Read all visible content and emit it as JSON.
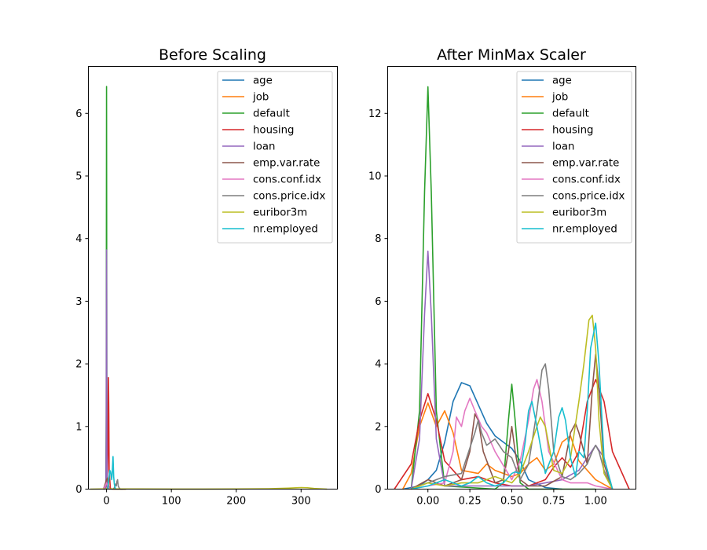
{
  "colors": [
    "#1f77b4",
    "#ff7f0e",
    "#2ca02c",
    "#d62728",
    "#9467bd",
    "#8c564b",
    "#e377c2",
    "#7f7f7f",
    "#bcbd22",
    "#17becf"
  ],
  "chart_data": [
    {
      "type": "line",
      "title": "Before Scaling",
      "xlabel": "",
      "ylabel": "",
      "xlim": [
        -28,
        356
      ],
      "ylim": [
        0,
        6.75
      ],
      "xticks": [
        0,
        100,
        200,
        300
      ],
      "xtick_labels": [
        "0",
        "100",
        "200",
        "300"
      ],
      "yticks": [
        0,
        1,
        2,
        3,
        4,
        5,
        6
      ],
      "ytick_labels": [
        "0",
        "1",
        "2",
        "3",
        "4",
        "5",
        "6"
      ],
      "legend_position": "top-right",
      "series": [
        {
          "name": "age",
          "x": [
            -5,
            -2,
            0,
            1,
            2,
            4,
            10,
            20,
            30
          ],
          "y": [
            0,
            0.002,
            0.008,
            0.01,
            0.008,
            0.002,
            0,
            0,
            0
          ]
        },
        {
          "name": "job",
          "x": [
            -5,
            -2,
            0,
            1,
            2,
            4,
            10,
            20,
            30
          ],
          "y": [
            0,
            0.01,
            0.04,
            0.06,
            0.04,
            0.01,
            0,
            0,
            0
          ]
        },
        {
          "name": "default",
          "x": [
            -2,
            -1,
            -0.5,
            -0.2,
            0,
            0.2,
            0.5,
            1,
            2
          ],
          "y": [
            0,
            0.05,
            1.2,
            4.5,
            6.43,
            4.5,
            1.2,
            0.05,
            0
          ]
        },
        {
          "name": "housing",
          "x": [
            -3,
            -1,
            0,
            1,
            2,
            2.5,
            3,
            3.5,
            4,
            6
          ],
          "y": [
            0,
            0.1,
            0.25,
            0.1,
            0.6,
            1.2,
            1.78,
            1.2,
            0.3,
            0
          ]
        },
        {
          "name": "loan",
          "x": [
            -2,
            -1,
            -0.5,
            -0.2,
            0,
            0.2,
            0.5,
            1,
            2
          ],
          "y": [
            0,
            0.05,
            0.8,
            2.9,
            3.82,
            2.9,
            0.8,
            0.05,
            0
          ]
        },
        {
          "name": "emp.var.rate",
          "x": [
            -5,
            -3,
            0,
            1.5,
            3,
            5
          ],
          "y": [
            0,
            0.05,
            0.15,
            0.18,
            0.05,
            0
          ]
        },
        {
          "name": "cons.conf.idx",
          "x": [
            -5,
            -2,
            0,
            2,
            5
          ],
          "y": [
            0,
            0.05,
            0.1,
            0.05,
            0
          ]
        },
        {
          "name": "cons.price.idx",
          "x": [
            10,
            12,
            14,
            15,
            16,
            17,
            18,
            19,
            20,
            22,
            25
          ],
          "y": [
            0,
            0.02,
            0.08,
            0.05,
            0.12,
            0.15,
            0.05,
            0.03,
            0.01,
            0,
            0
          ]
        },
        {
          "name": "euribor3m",
          "x": [
            -25,
            0,
            50,
            100,
            150,
            200,
            250,
            280,
            300,
            310,
            320,
            340
          ],
          "y": [
            0,
            0.003,
            0.002,
            0.001,
            0.001,
            0.002,
            0.006,
            0.015,
            0.025,
            0.022,
            0.01,
            0
          ]
        },
        {
          "name": "nr.employed",
          "x": [
            2,
            4,
            5,
            6,
            7,
            8,
            9,
            10,
            11,
            12,
            13,
            14
          ],
          "y": [
            0,
            0.2,
            0.3,
            0.28,
            0.22,
            0.15,
            0.3,
            0.52,
            0.2,
            0.08,
            0.03,
            0
          ]
        }
      ]
    },
    {
      "type": "line",
      "title": "After MinMax Scaler",
      "xlabel": "",
      "ylabel": "",
      "xlim": [
        -0.24,
        1.24
      ],
      "ylim": [
        0,
        13.5
      ],
      "xticks": [
        0,
        0.25,
        0.5,
        0.75,
        1
      ],
      "xtick_labels": [
        "0.00",
        "0.25",
        "0.50",
        "0.75",
        "1.00"
      ],
      "yticks": [
        0,
        2,
        4,
        6,
        8,
        10,
        12
      ],
      "ytick_labels": [
        "0",
        "2",
        "4",
        "6",
        "8",
        "10",
        "12"
      ],
      "legend_position": "top-right",
      "series": [
        {
          "name": "age",
          "x": [
            -0.15,
            -0.05,
            0,
            0.05,
            0.1,
            0.15,
            0.2,
            0.25,
            0.3,
            0.35,
            0.4,
            0.45,
            0.5,
            0.55,
            0.6,
            0.7,
            0.8
          ],
          "y": [
            0,
            0.1,
            0.3,
            0.6,
            1.5,
            2.8,
            3.4,
            3.3,
            2.7,
            2.1,
            1.7,
            1.5,
            1.3,
            0.9,
            0.3,
            0.05,
            0
          ]
        },
        {
          "name": "job",
          "x": [
            -0.15,
            -0.1,
            -0.05,
            0,
            0.05,
            0.1,
            0.15,
            0.2,
            0.3,
            0.35,
            0.4,
            0.5,
            0.55,
            0.6,
            0.65,
            0.7,
            0.75,
            0.8,
            0.85,
            0.9,
            1.0,
            1.1
          ],
          "y": [
            0,
            0.5,
            2.0,
            2.75,
            2.0,
            2.5,
            1.8,
            0.6,
            0.5,
            0.8,
            0.6,
            0.4,
            0.5,
            0.8,
            1.0,
            0.6,
            0.8,
            1.5,
            1.7,
            0.9,
            0.3,
            0
          ]
        },
        {
          "name": "default",
          "x": [
            -0.1,
            -0.05,
            -0.02,
            0,
            0.02,
            0.05,
            0.1,
            0.4,
            0.45,
            0.48,
            0.5,
            0.52,
            0.55,
            0.6,
            1.0
          ],
          "y": [
            0,
            2.5,
            9.5,
            12.85,
            9.5,
            2.5,
            0.1,
            0,
            0.2,
            2.2,
            3.35,
            2.2,
            0.2,
            0,
            0
          ]
        },
        {
          "name": "housing",
          "x": [
            -0.2,
            -0.1,
            -0.05,
            0,
            0.05,
            0.1,
            0.2,
            0.3,
            0.4,
            0.5,
            0.6,
            0.7,
            0.75,
            0.8,
            0.85,
            0.9,
            0.95,
            1.0,
            1.05,
            1.1,
            1.2
          ],
          "y": [
            0,
            0.8,
            2.2,
            3.05,
            2.2,
            0.9,
            0.3,
            0.4,
            0.2,
            0.1,
            0.1,
            0.3,
            0.7,
            1.0,
            0.7,
            1.2,
            2.8,
            3.5,
            2.8,
            1.2,
            0
          ]
        },
        {
          "name": "loan",
          "x": [
            -0.1,
            -0.05,
            -0.02,
            0,
            0.02,
            0.05,
            0.1,
            0.2,
            0.4,
            0.6,
            0.8,
            0.9,
            0.95,
            1.0,
            1.05,
            1.1
          ],
          "y": [
            0,
            1.6,
            5.6,
            7.6,
            5.6,
            1.6,
            0.1,
            0.1,
            0.1,
            0.1,
            0.3,
            0.6,
            1.0,
            1.4,
            1.0,
            0
          ]
        },
        {
          "name": "emp.var.rate",
          "x": [
            -0.1,
            0,
            0.1,
            0.2,
            0.25,
            0.28,
            0.3,
            0.33,
            0.4,
            0.45,
            0.48,
            0.5,
            0.52,
            0.55,
            0.6,
            0.7,
            0.8,
            0.85,
            0.88,
            0.9,
            0.95,
            0.98,
            1.0,
            1.02,
            1.05,
            1.1
          ],
          "y": [
            0,
            0.3,
            0.1,
            0.3,
            1.2,
            2.4,
            2.2,
            1.2,
            0.2,
            0.3,
            1.2,
            2.0,
            1.2,
            0.3,
            0.1,
            0.1,
            0.4,
            1.8,
            2.1,
            1.8,
            0.8,
            3.2,
            4.3,
            3.2,
            0.8,
            0
          ]
        },
        {
          "name": "cons.conf.idx",
          "x": [
            -0.1,
            0,
            0.1,
            0.15,
            0.17,
            0.2,
            0.22,
            0.25,
            0.28,
            0.32,
            0.35,
            0.4,
            0.5,
            0.55,
            0.6,
            0.63,
            0.65,
            0.68,
            0.72,
            0.8,
            0.85,
            0.9,
            0.95,
            1.0,
            1.1
          ],
          "y": [
            0,
            0.1,
            0.2,
            1.2,
            2.3,
            2.0,
            2.5,
            2.9,
            2.5,
            2.0,
            1.8,
            1.2,
            0.3,
            0.9,
            2.2,
            3.2,
            3.5,
            2.8,
            1.2,
            0.3,
            0.2,
            0.2,
            0.2,
            0.1,
            0
          ]
        },
        {
          "name": "cons.price.idx",
          "x": [
            -0.1,
            0,
            0.1,
            0.2,
            0.28,
            0.3,
            0.32,
            0.35,
            0.4,
            0.45,
            0.5,
            0.55,
            0.6,
            0.65,
            0.68,
            0.7,
            0.72,
            0.75,
            0.8,
            0.85,
            0.9,
            0.95,
            0.98,
            1.0,
            1.02,
            1.05,
            1.1
          ],
          "y": [
            0,
            0.2,
            0.4,
            0.5,
            1.8,
            2.2,
            1.8,
            1.4,
            1.6,
            1.2,
            1.0,
            0.3,
            0.8,
            2.5,
            3.8,
            4.0,
            3.2,
            1.2,
            0.4,
            0.3,
            0.5,
            0.8,
            1.2,
            1.4,
            1.2,
            0.6,
            0
          ]
        },
        {
          "name": "euribor3m",
          "x": [
            -0.1,
            0,
            0.1,
            0.2,
            0.3,
            0.35,
            0.4,
            0.45,
            0.5,
            0.55,
            0.6,
            0.65,
            0.67,
            0.7,
            0.75,
            0.8,
            0.85,
            0.9,
            0.93,
            0.96,
            0.98,
            1.0,
            1.02,
            1.05,
            1.1
          ],
          "y": [
            0,
            0.2,
            0.1,
            0.2,
            0.2,
            0.3,
            0.4,
            0.3,
            0.2,
            0.5,
            1.2,
            2.0,
            2.3,
            2.0,
            0.6,
            0.5,
            1.0,
            2.8,
            4.0,
            5.4,
            5.55,
            4.5,
            2.2,
            0.5,
            0
          ]
        },
        {
          "name": "nr.employed",
          "x": [
            -0.1,
            0,
            0.05,
            0.1,
            0.15,
            0.2,
            0.25,
            0.3,
            0.35,
            0.4,
            0.45,
            0.5,
            0.52,
            0.55,
            0.58,
            0.6,
            0.62,
            0.65,
            0.7,
            0.75,
            0.78,
            0.8,
            0.82,
            0.85,
            0.88,
            0.9,
            0.93,
            0.95,
            0.97,
            1.0,
            1.02,
            1.05,
            1.1
          ],
          "y": [
            0,
            0.1,
            0.2,
            0.3,
            0.2,
            0.1,
            0.2,
            0.4,
            0.2,
            0.1,
            0.2,
            0.5,
            0.55,
            0.5,
            1.5,
            2.5,
            2.8,
            2.0,
            0.5,
            1.2,
            2.3,
            2.6,
            2.2,
            1.0,
            0.4,
            1.2,
            1.0,
            2.5,
            4.5,
            5.3,
            4.0,
            1.0,
            0
          ]
        }
      ]
    }
  ]
}
